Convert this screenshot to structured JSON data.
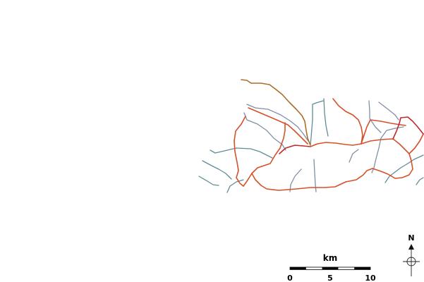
{
  "map": {
    "background_color": "#ffffff",
    "colors": {
      "major_road": "#d4512a",
      "minor_road": "#7f8fa6",
      "stream": "#5f8c98",
      "trail": "#b06a2a",
      "central": "#c0282c"
    }
  },
  "scale_bar": {
    "unit_label": "km",
    "ticks": [
      "0",
      "5",
      "10"
    ]
  },
  "north_arrow": {
    "letter": "N",
    "icon": "north-arrow-icon"
  }
}
